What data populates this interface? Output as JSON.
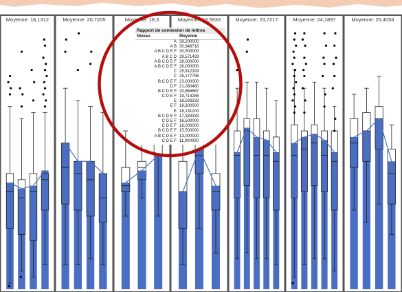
{
  "chart_data": {
    "type": "box",
    "ylim": [
      0,
      45
    ],
    "colors": {
      "bar": "#4a6ec2",
      "box_stroke": "#222222",
      "panel_border": "#555555",
      "mean_line": "#4a6ec2",
      "circle": "#b50d0d"
    },
    "panels": [
      {
        "mean_label": "Moyenne: 18,1312",
        "groups": [
          {
            "mean": 17.5,
            "q1": 10,
            "median": 16,
            "q3": 19,
            "whisker_low": 1,
            "whisker_high": 30,
            "outliers": [
              32,
              33,
              34,
              35,
              0.5
            ]
          },
          {
            "mean": 16.5,
            "q1": 9,
            "median": 15,
            "q3": 18,
            "whisker_low": 3,
            "whisker_high": 28,
            "outliers": [
              30,
              32,
              33,
              39,
              2
            ]
          },
          {
            "mean": 17.0,
            "q1": 8,
            "median": 16,
            "q3": 19,
            "whisker_low": 2,
            "whisker_high": 29,
            "outliers": [
              31,
              34,
              36
            ]
          },
          {
            "mean": 19.5,
            "q1": 13,
            "median": 18,
            "q3": 19,
            "whisker_low": 4,
            "whisker_high": 29,
            "outliers": [
              30,
              31,
              32,
              33,
              34,
              35,
              36,
              37,
              38,
              40,
              41
            ]
          }
        ]
      },
      {
        "mean_label": "Moyenne: 20,7205",
        "groups": [
          {
            "mean": 24.0,
            "q1": 14,
            "median": 20,
            "q3": 24,
            "whisker_low": 4,
            "whisker_high": 33,
            "outliers": [
              39,
              41
            ]
          },
          {
            "mean": 21.0,
            "q1": 13,
            "median": 19,
            "q3": 21,
            "whisker_low": 4,
            "whisker_high": 31,
            "outliers": [
              36,
              42
            ]
          },
          {
            "mean": 21.0,
            "q1": 12,
            "median": 18,
            "q3": 21,
            "whisker_low": 5,
            "whisker_high": 30,
            "outliers": [
              37,
              39
            ]
          },
          {
            "mean": 19.0,
            "q1": 11,
            "median": 15,
            "q3": 19,
            "whisker_low": 4,
            "whisker_high": 29,
            "outliers": []
          }
        ]
      },
      {
        "mean_label": "Moyenne: 18,3",
        "groups": [
          {
            "mean": 17.5,
            "q1": 16,
            "median": 17,
            "q3": 20,
            "whisker_low": 12,
            "whisker_high": 26,
            "outliers": []
          },
          {
            "mean": 19.5,
            "q1": 18,
            "median": 20,
            "q3": 21,
            "whisker_low": 15,
            "whisker_high": 25,
            "outliers": []
          },
          {
            "mean": 22.0,
            "q1": 22,
            "median": 24,
            "q3": 28,
            "whisker_low": 12,
            "whisker_high": 35,
            "outliers": []
          }
        ]
      },
      {
        "mean_label": "Moyenne: 18,5933",
        "groups": [
          {
            "mean": 16.0,
            "q1": 10,
            "median": 16,
            "q3": 21,
            "whisker_low": 4,
            "whisker_high": 26,
            "outliers": []
          },
          {
            "mean": 23.0,
            "q1": 19,
            "median": 22,
            "q3": 24,
            "whisker_low": 10,
            "whisker_high": 30,
            "outliers": []
          },
          {
            "mean": 17.0,
            "q1": 13,
            "median": 16,
            "q3": 19,
            "whisker_low": 6,
            "whisker_high": 25,
            "outliers": []
          }
        ]
      },
      {
        "mean_label": "Moyenne: 23,7217",
        "groups": [
          {
            "mean": 22.5,
            "q1": 15,
            "median": 22,
            "q3": 26,
            "whisker_low": 5,
            "whisker_high": 33,
            "outliers": [
              36,
              37,
              38
            ]
          },
          {
            "mean": 26.5,
            "q1": 17,
            "median": 26,
            "q3": 28,
            "whisker_low": 6,
            "whisker_high": 34,
            "outliers": [
              39,
              41
            ]
          },
          {
            "mean": 25.0,
            "q1": 15,
            "median": 22,
            "q3": 28,
            "whisker_low": 5,
            "whisker_high": 34,
            "outliers": []
          },
          {
            "mean": 24.5,
            "q1": 15,
            "median": 22,
            "q3": 26,
            "whisker_low": 5,
            "whisker_high": 33,
            "outliers": []
          },
          {
            "mean": 22.5,
            "q1": 13,
            "median": 21,
            "q3": 25,
            "whisker_low": 4,
            "whisker_high": 31,
            "outliers": []
          }
        ]
      },
      {
        "mean_label": "Moyenne: 24,1897",
        "groups": [
          {
            "mean": 24.0,
            "q1": 15,
            "median": 22,
            "q3": 27,
            "whisker_low": 2,
            "whisker_high": 36,
            "outliers": [
              29,
              30,
              31,
              32,
              33,
              34,
              35,
              36,
              37,
              38,
              39,
              40,
              41,
              42,
              1
            ]
          },
          {
            "mean": 25.0,
            "q1": 16,
            "median": 23,
            "q3": 26,
            "whisker_low": 4,
            "whisker_high": 33,
            "outliers": [
              29,
              31,
              33,
              35,
              36,
              37,
              38,
              40,
              41,
              42
            ]
          },
          {
            "mean": 25.5,
            "q1": 17,
            "median": 24,
            "q3": 27,
            "whisker_low": 5,
            "whisker_high": 34,
            "outliers": []
          },
          {
            "mean": 24.5,
            "q1": 16,
            "median": 22,
            "q3": 26,
            "whisker_low": 5,
            "whisker_high": 33,
            "outliers": [
              30,
              32,
              35,
              37,
              38,
              40,
              42
            ]
          },
          {
            "mean": 22.5,
            "q1": 13,
            "median": 21,
            "q3": 26,
            "whisker_low": 3,
            "whisker_high": 30,
            "outliers": [
              26,
              28,
              33,
              35,
              37,
              38,
              40,
              42
            ]
          }
        ]
      },
      {
        "mean_label": "Moyenne: 25,4054",
        "groups": [
          {
            "mean": 25.0,
            "q1": 20,
            "median": 24,
            "q3": 28,
            "whisker_low": 13,
            "whisker_high": 32,
            "outliers": []
          },
          {
            "mean": 26.0,
            "q1": 21,
            "median": 26,
            "q3": 29,
            "whisker_low": 11,
            "whisker_high": 33,
            "outliers": []
          },
          {
            "mean": 28.0,
            "q1": 23,
            "median": 28,
            "q3": 30,
            "whisker_low": 14,
            "whisker_high": 35,
            "outliers": []
          },
          {
            "mean": 21.0,
            "q1": 14,
            "median": 19,
            "q3": 23,
            "whisker_low": 9,
            "whisker_high": 27,
            "outliers": []
          }
        ]
      }
    ]
  },
  "report": {
    "title": "Rapport de connexion de lettres",
    "col_level": "Niveau",
    "col_mean": "Moyenne",
    "rows": [
      {
        "letters": "A",
        "mean": "39,200000"
      },
      {
        "letters": "A B",
        "mean": "30,948718"
      },
      {
        "letters": "A B C D E F",
        "mean": "30,500000"
      },
      {
        "letters": "A B C D",
        "mean": "29,571429"
      },
      {
        "letters": "A B C D E F",
        "mean": "29,000000"
      },
      {
        "letters": "A B C D E F",
        "mean": "28,000000"
      },
      {
        "letters": "C",
        "mean": "25,812329"
      },
      {
        "letters": "C",
        "mean": "25,177796"
      },
      {
        "letters": "B C D E F",
        "mean": "23,000000"
      },
      {
        "letters": "D F",
        "mean": "21,080460"
      },
      {
        "letters": "B C D E F",
        "mean": "20,666667"
      },
      {
        "letters": "C D E F",
        "mean": "19,714286"
      },
      {
        "letters": "E",
        "mean": "18,593333"
      },
      {
        "letters": "E F",
        "mean": "18,300000"
      },
      {
        "letters": "E",
        "mean": "18,131200"
      },
      {
        "letters": "B C D E F",
        "mean": "17,333333"
      },
      {
        "letters": "C D E F",
        "mean": "16,500000"
      },
      {
        "letters": "C D E F",
        "mean": "16,000000"
      },
      {
        "letters": "B C D E F",
        "mean": "15,500000"
      },
      {
        "letters": "A B C D E F",
        "mean": "13,000000"
      },
      {
        "letters": "C D E F",
        "mean": "11,000000"
      }
    ]
  }
}
